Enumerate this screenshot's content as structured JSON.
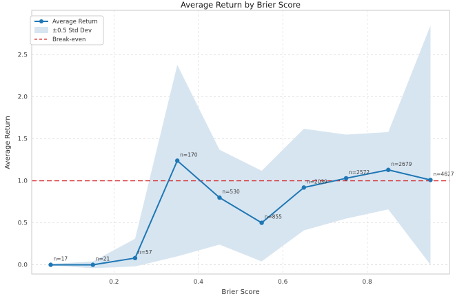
{
  "title": "Average Return by Brier Score",
  "axes": {
    "xlabel": "Brier Score",
    "ylabel": "Average Return"
  },
  "legend": {
    "items": [
      {
        "label": "Average Return",
        "type": "line-with-marker"
      },
      {
        "label": "±0.5 Std Dev",
        "type": "patch"
      },
      {
        "label": "Break-even",
        "type": "dashed-line"
      }
    ]
  },
  "chart_data": {
    "type": "line",
    "title": "Average Return by Brier Score",
    "xlabel": "Brier Score",
    "ylabel": "Average Return",
    "x": [
      0.05,
      0.15,
      0.25,
      0.35,
      0.45,
      0.55,
      0.65,
      0.75,
      0.85,
      0.95
    ],
    "series": [
      {
        "name": "Average Return",
        "values": [
          0.0,
          0.0,
          0.08,
          1.24,
          0.8,
          0.5,
          0.92,
          1.03,
          1.13,
          1.01
        ]
      }
    ],
    "band": {
      "name": "±0.5 Std Dev",
      "lower": [
        -0.01,
        -0.04,
        -0.02,
        0.1,
        0.24,
        0.04,
        0.41,
        0.55,
        0.66,
        0.0
      ],
      "upper": [
        0.01,
        0.04,
        0.31,
        2.38,
        1.37,
        1.12,
        1.62,
        1.55,
        1.58,
        2.85
      ]
    },
    "breakeven": {
      "name": "Break-even",
      "y": 1.0
    },
    "point_labels": [
      "n=17",
      "n=21",
      "n=57",
      "n=170",
      "n=530",
      "n=855",
      "n=2039",
      "n=2572",
      "n=2679",
      "n=4627"
    ],
    "xticks": [
      0.2,
      0.4,
      0.6,
      0.8
    ],
    "yticks": [
      0.0,
      0.5,
      1.0,
      1.5,
      2.0,
      2.5
    ],
    "xlim": [
      0.005,
      0.995
    ],
    "ylim": [
      -0.11,
      3.03
    ],
    "grid": true,
    "legend_position": "upper left",
    "colors": {
      "line": "#1f77b4",
      "band": "#d7e5f1",
      "breakeven": "#d62728",
      "grid": "#dfdfdf",
      "spine": "#c9c9c9",
      "text": "#262626"
    }
  }
}
